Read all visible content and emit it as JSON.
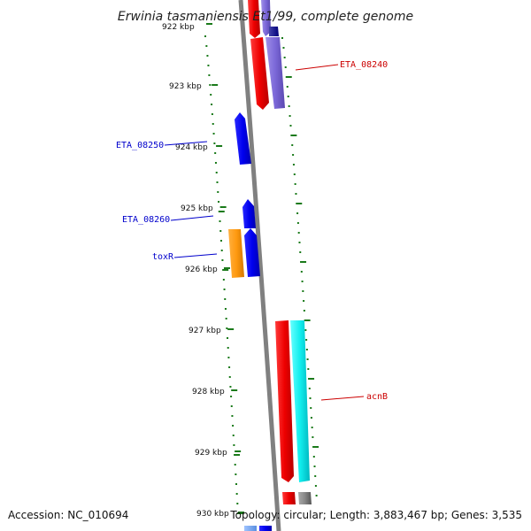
{
  "title": "Erwinia tasmaniensis Et1/99, complete genome",
  "accession": "Accession: NC_010694",
  "summary": "Topology: circular; Length: 3,883,467 bp; Genes: 3,535",
  "colors": {
    "backbone": "#808080",
    "ticks": "#1a7a1a",
    "forward_label": "#cc0000",
    "reverse_label": "#0000cc"
  },
  "ticks": [
    {
      "label": "922 kbp"
    },
    {
      "label": "923 kbp"
    },
    {
      "label": "924 kbp"
    },
    {
      "label": "925 kbp"
    },
    {
      "label": "926 kbp"
    },
    {
      "label": "927 kbp"
    },
    {
      "label": "928 kbp"
    },
    {
      "label": "929 kbp"
    },
    {
      "label": "930 kbp"
    }
  ],
  "gene_labels": [
    {
      "text": "ETA_08240",
      "strand": "forward"
    },
    {
      "text": "ETA_08250",
      "strand": "reverse"
    },
    {
      "text": "ETA_08260",
      "strand": "reverse"
    },
    {
      "text": "toxR",
      "strand": "reverse"
    },
    {
      "text": "acnB",
      "strand": "forward"
    }
  ]
}
